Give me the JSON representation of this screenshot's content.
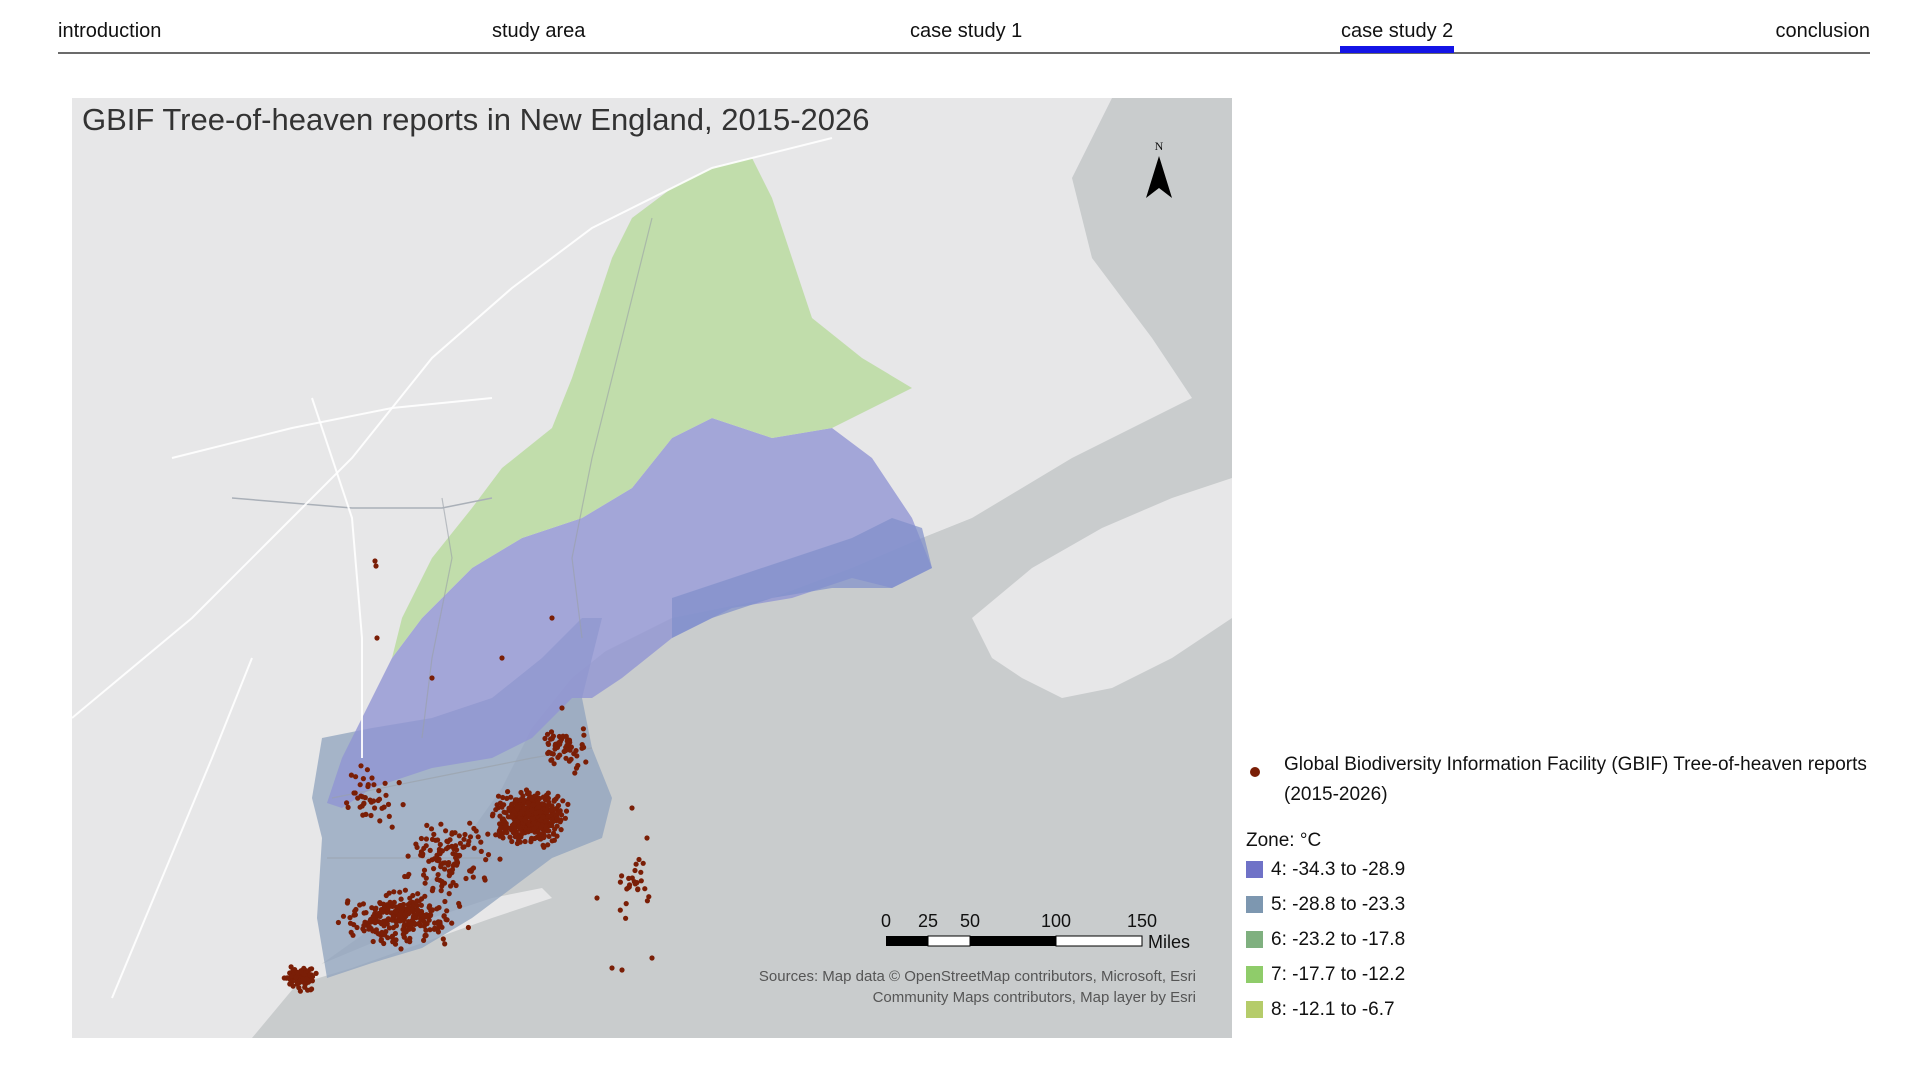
{
  "nav": {
    "items": [
      {
        "label": "introduction"
      },
      {
        "label": "study area"
      },
      {
        "label": "case study 1"
      },
      {
        "label": "case study 2"
      },
      {
        "label": "conclusion"
      }
    ],
    "active_index": 3,
    "accent_color": "#1414e6"
  },
  "map": {
    "title": "GBIF Tree-of-heaven reports in New England, 2015-2026",
    "north_arrow_label": "N",
    "scale_bar": {
      "ticks": [
        "0",
        "25",
        "50",
        "100",
        "150"
      ],
      "unit": "Miles"
    },
    "sources_line1": "Sources: Map data © OpenStreetMap contributors, Microsoft, Esri",
    "sources_line2": "Community Maps contributors, Map layer by Esri",
    "point_color": "#7a1e06"
  },
  "legend": {
    "points_label": "Global Biodiversity Information Facility (GBIF) Tree-of-heaven reports (2015-2026)",
    "zone_title": "Zone: °C",
    "zones": [
      {
        "label": "4: -34.3 to -28.9",
        "color": "#6f72c7"
      },
      {
        "label": "5: -28.8 to -23.3",
        "color": "#7d97b0"
      },
      {
        "label": "6: -23.2 to -17.8",
        "color": "#7fb07f"
      },
      {
        "label": "7: -17.7 to -12.2",
        "color": "#8fcc6a"
      },
      {
        "label": "8: -12.1 to -6.7",
        "color": "#b5cc6a"
      }
    ]
  }
}
